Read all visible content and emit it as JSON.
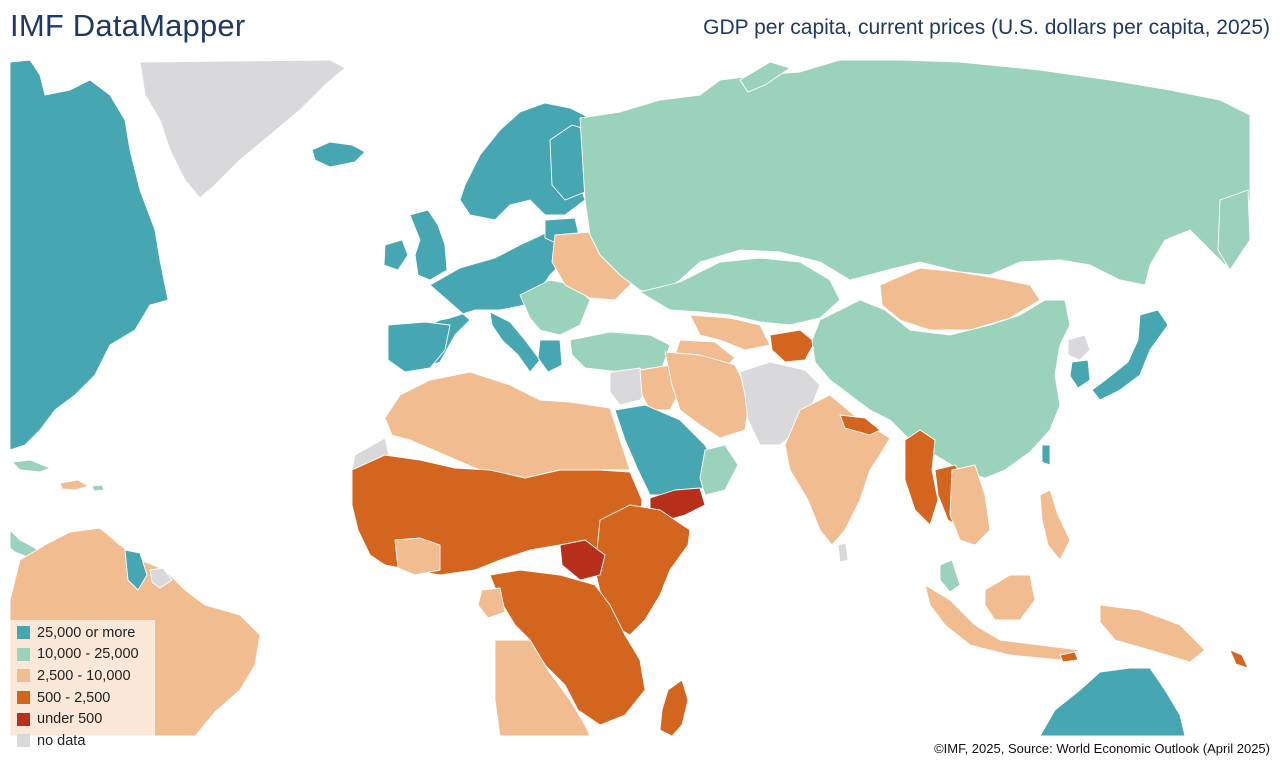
{
  "header": {
    "app_title": "IMF DataMapper",
    "map_title": "GDP per capita, current prices (U.S. dollars per capita, 2025)"
  },
  "legend": {
    "items": [
      {
        "label": "25,000 or more",
        "color": "#46a6b1"
      },
      {
        "label": "10,000 - 25,000",
        "color": "#9bd2bb"
      },
      {
        "label": "2,500 - 10,000",
        "color": "#f2bc91"
      },
      {
        "label": "500 - 2,500",
        "color": "#d4651f"
      },
      {
        "label": "under 500",
        "color": "#b8301c"
      },
      {
        "label": "no data",
        "color": "#d9d9dc"
      }
    ]
  },
  "footer": {
    "source_note": "©IMF, 2025, Source: World Economic Outlook (April 2025)"
  }
}
